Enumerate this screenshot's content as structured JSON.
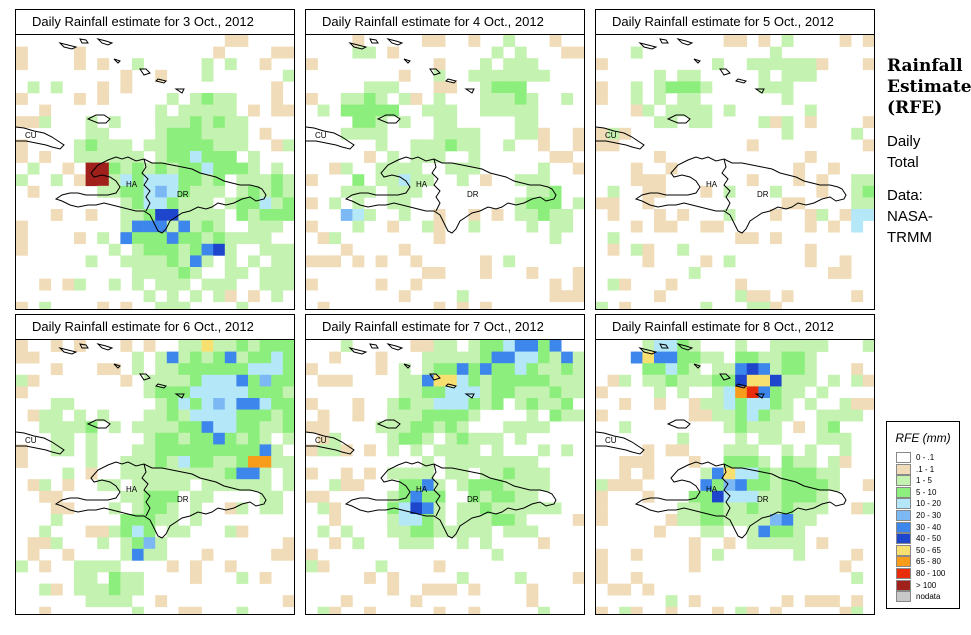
{
  "panels": [
    {
      "title": "Daily Rainfall estimate for  3 Oct., 2012",
      "label_cu": "CU",
      "label_ha": "HA",
      "label_dr": "DR"
    },
    {
      "title": "Daily Rainfall estimate for  4 Oct., 2012",
      "label_cu": "CU",
      "label_ha": "HA",
      "label_dr": "DR"
    },
    {
      "title": "Daily Rainfall estimate for  5 Oct., 2012",
      "label_cu": "CU",
      "label_ha": "HA",
      "label_dr": "DR"
    },
    {
      "title": "Daily Rainfall estimate for  6 Oct., 2012",
      "label_cu": "CU",
      "label_ha": "HA",
      "label_dr": "DR"
    },
    {
      "title": "Daily Rainfall estimate for  7 Oct., 2012",
      "label_cu": "CU",
      "label_ha": "HA",
      "label_dr": "DR"
    },
    {
      "title": "Daily Rainfall estimate for  8 Oct., 2012",
      "label_cu": "CU",
      "label_ha": "HA",
      "label_dr": "DR"
    }
  ],
  "sidebar": {
    "title_line1": "Rainfall",
    "title_line2": "Estimate",
    "title_line3": "(RFE)",
    "daily": "Daily",
    "total": "Total",
    "data_label": "Data:",
    "source_line1": "NASA-",
    "source_line2": "TRMM"
  },
  "legend": {
    "title": "RFE (mm)",
    "items": [
      {
        "label": "0 - .1",
        "color": "#ffffff"
      },
      {
        "label": ".1 - 1",
        "color": "#f0dcb8"
      },
      {
        "label": "1 - 5",
        "color": "#c4f2b0"
      },
      {
        "label": "5 - 10",
        "color": "#8cee7c"
      },
      {
        "label": "10 - 20",
        "color": "#b4e8f8"
      },
      {
        "label": "20 - 30",
        "color": "#7cb8f4"
      },
      {
        "label": "30 - 40",
        "color": "#3c86ec"
      },
      {
        "label": "40 - 50",
        "color": "#1e46cc"
      },
      {
        "label": "50 - 65",
        "color": "#f8e070"
      },
      {
        "label": "65 - 80",
        "color": "#f89c1c"
      },
      {
        "label": "80 - 100",
        "color": "#e82c0c"
      },
      {
        "label": "> 100",
        "color": "#a0201c"
      },
      {
        "label": "nodata",
        "color": "#c8c8c8"
      }
    ]
  }
}
